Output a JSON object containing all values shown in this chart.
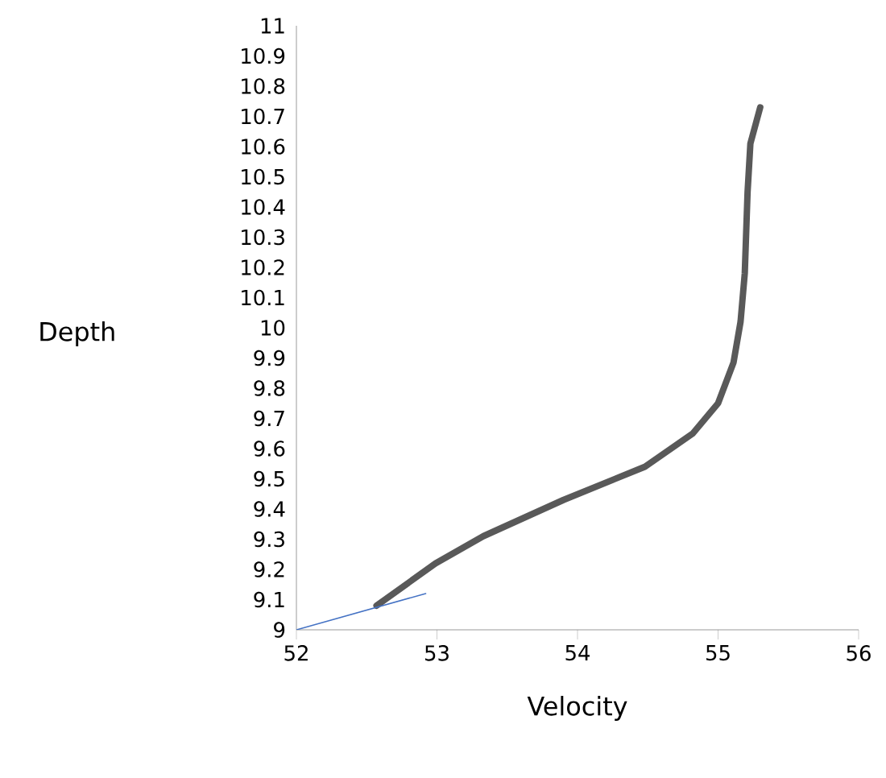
{
  "chart_data": {
    "type": "line",
    "xlabel": "Velocity",
    "ylabel": "Depth",
    "xlim": [
      52,
      56
    ],
    "xticks": [
      52,
      53,
      54,
      55,
      56
    ],
    "ylim": [
      9,
      11
    ],
    "yticks": [
      9,
      9.1,
      9.2,
      9.3,
      9.4,
      9.5,
      9.6,
      9.7,
      9.8,
      9.9,
      10,
      10.1,
      10.2,
      10.3,
      10.4,
      10.5,
      10.6,
      10.7,
      10.8,
      10.9,
      11
    ],
    "grid": false,
    "marker": "none",
    "line_style": "solid",
    "series": [
      {
        "color": "#595959",
        "x": [
          52.57,
          52.99,
          53.33,
          53.9,
          54.48,
          54.82,
          55.0,
          55.11,
          55.16,
          55.19,
          55.21,
          55.23,
          55.3
        ],
        "values": [
          9.08,
          9.22,
          9.31,
          9.43,
          9.54,
          9.65,
          9.75,
          9.885,
          10.02,
          10.18,
          10.45,
          10.61,
          10.73
        ]
      },
      {
        "color": "#4472c4",
        "x": [
          52,
          52.92
        ],
        "values": [
          9,
          9.12
        ]
      }
    ]
  }
}
